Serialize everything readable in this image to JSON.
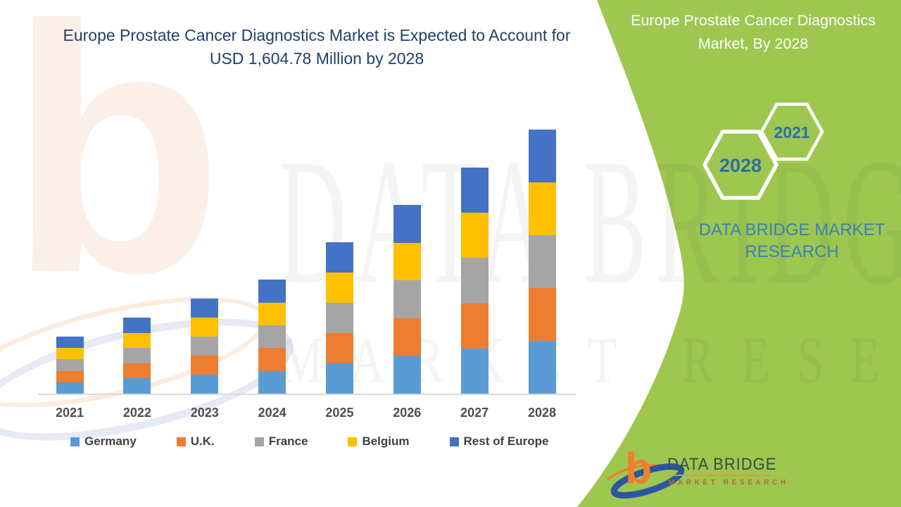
{
  "main_title": {
    "text": "Europe Prostate Cancer Diagnostics Market is Expected to Account for USD 1,604.78 Million by 2028",
    "color": "#21406b"
  },
  "side_panel": {
    "background": "#9dc74f",
    "title": "Europe Prostate Cancer Diagnostics Market, By 2028",
    "hexagons": [
      {
        "label": "2021"
      },
      {
        "label": "2028"
      }
    ],
    "hexagon_text_color": "#2e6da4",
    "brand_lockup": {
      "line1": "DATA BRIDGE MARKET",
      "line2": "RESEARCH",
      "color": "#3b80ba"
    }
  },
  "watermark": {
    "line1": "DATA BRIDGE",
    "line2": "MARKET RESEARCH",
    "letter_b": "b"
  },
  "logo": {
    "title": "DATA BRIDGE",
    "subtitle": "MARKET RESEARCH",
    "title_color": "#3f4a42",
    "subtitle_color": "#a86f2f",
    "icon_orange": "#f07f2d",
    "icon_blue": "#2b55a3"
  },
  "chart_data": {
    "type": "bar",
    "stacked": true,
    "title": "",
    "xlabel": "",
    "ylabel": "",
    "unit": "USD Million",
    "categories": [
      "2021",
      "2022",
      "2023",
      "2024",
      "2025",
      "2026",
      "2027",
      "2028"
    ],
    "totals": [
      347,
      462,
      578,
      693,
      920,
      1147,
      1374,
      1604.78
    ],
    "series": [
      {
        "name": "Germany",
        "color": "#5b9bd5",
        "values": [
          69.4,
          92.4,
          115.6,
          138.6,
          184.0,
          229.4,
          274.8,
          320.96
        ]
      },
      {
        "name": "U.K.",
        "color": "#ed7d31",
        "values": [
          69.4,
          92.4,
          115.6,
          138.6,
          184.0,
          229.4,
          274.8,
          320.96
        ]
      },
      {
        "name": "France",
        "color": "#a5a5a5",
        "values": [
          69.4,
          92.4,
          115.6,
          138.6,
          184.0,
          229.4,
          274.8,
          320.96
        ]
      },
      {
        "name": "Belgium",
        "color": "#ffc000",
        "values": [
          69.4,
          92.4,
          115.6,
          138.6,
          184.0,
          229.4,
          274.8,
          320.96
        ]
      },
      {
        "name": "Rest of Europe",
        "color": "#4472c4",
        "values": [
          69.4,
          92.4,
          115.6,
          138.6,
          184.0,
          229.4,
          274.8,
          320.96
        ]
      }
    ],
    "legend_position": "bottom",
    "gridlines": false,
    "y_axis_visible": false,
    "axis_line_color": "#d9d9d9",
    "x_label_color": "#4d4d4d"
  }
}
